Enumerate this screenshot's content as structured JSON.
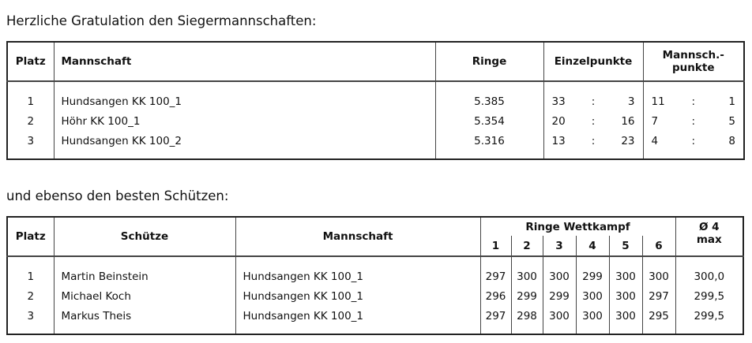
{
  "title1": "Herzliche Gratulation den Siegermannschaften:",
  "teams": {
    "headers": {
      "platz": "Platz",
      "mannschaft": "Mannschaft",
      "ringe": "Ringe",
      "einzel": "Einzelpunkte",
      "mannsch": "Mannsch.-punkte"
    },
    "rows": [
      {
        "platz": "1",
        "mannschaft": "Hundsangen KK 100_1",
        "ringe": "5.385",
        "e1": "33",
        "e2": "3",
        "m1": "11",
        "m2": "1"
      },
      {
        "platz": "2",
        "mannschaft": "Höhr KK 100_1",
        "ringe": "5.354",
        "e1": "20",
        "e2": "16",
        "m1": "7",
        "m2": "5"
      },
      {
        "platz": "3",
        "mannschaft": "Hundsangen KK 100_2",
        "ringe": "5.316",
        "e1": "13",
        "e2": "23",
        "m1": "4",
        "m2": "8"
      }
    ],
    "sep": ":"
  },
  "title2": "und ebenso den besten Schützen:",
  "shooters": {
    "headers": {
      "platz": "Platz",
      "schuetze": "Schütze",
      "mannschaft": "Mannschaft",
      "ringe": "Ringe Wettkampf",
      "avg": "Ø 4 max",
      "rounds": [
        "1",
        "2",
        "3",
        "4",
        "5",
        "6"
      ]
    },
    "rows": [
      {
        "platz": "1",
        "name": "Martin Beinstein",
        "team": "Hundsangen KK 100_1",
        "r": [
          "297",
          "300",
          "300",
          "299",
          "300",
          "300"
        ],
        "avg": "300,0"
      },
      {
        "platz": "2",
        "name": "Michael Koch",
        "team": "Hundsangen KK 100_1",
        "r": [
          "296",
          "299",
          "299",
          "300",
          "300",
          "297"
        ],
        "avg": "299,5"
      },
      {
        "platz": "3",
        "name": "Markus Theis",
        "team": "Hundsangen KK 100_1",
        "r": [
          "297",
          "298",
          "300",
          "300",
          "300",
          "295"
        ],
        "avg": "299,5"
      }
    ]
  }
}
